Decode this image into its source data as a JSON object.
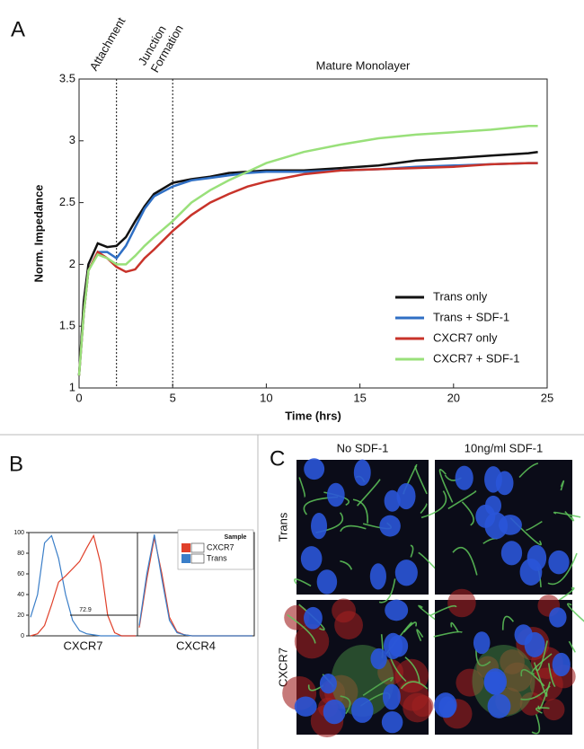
{
  "panel_labels": [
    "A",
    "B",
    "C"
  ],
  "chart_data": [
    {
      "type": "line",
      "annotations": [
        "Attachment",
        "Junction",
        "Formation",
        "Mature Monolayer"
      ],
      "vlines": [
        2,
        5
      ],
      "xlabel": "Time (hrs)",
      "ylabel": "Norm. Impedance",
      "x": [
        0,
        0.25,
        0.5,
        1,
        1.5,
        2,
        2.5,
        3,
        3.5,
        4,
        5,
        6,
        7,
        8,
        9,
        10,
        12,
        14,
        16,
        18,
        20,
        22,
        24,
        24.5
      ],
      "series": [
        {
          "name": "Trans only",
          "color": "#111111",
          "values": [
            1.1,
            1.7,
            2.0,
            2.17,
            2.14,
            2.15,
            2.22,
            2.35,
            2.47,
            2.57,
            2.66,
            2.69,
            2.71,
            2.74,
            2.75,
            2.76,
            2.76,
            2.78,
            2.8,
            2.84,
            2.86,
            2.88,
            2.9,
            2.91
          ]
        },
        {
          "name": "Trans + SDF-1",
          "color": "#2f6fc4",
          "values": [
            1.1,
            1.6,
            1.95,
            2.1,
            2.1,
            2.05,
            2.15,
            2.3,
            2.45,
            2.55,
            2.63,
            2.68,
            2.7,
            2.72,
            2.74,
            2.75,
            2.75,
            2.76,
            2.77,
            2.79,
            2.8,
            2.81,
            2.82,
            2.82
          ]
        },
        {
          "name": "CXCR7 only",
          "color": "#c8332a",
          "values": [
            1.1,
            1.6,
            1.95,
            2.1,
            2.05,
            1.98,
            1.94,
            1.96,
            2.05,
            2.12,
            2.27,
            2.4,
            2.5,
            2.57,
            2.63,
            2.67,
            2.73,
            2.76,
            2.77,
            2.78,
            2.79,
            2.81,
            2.82,
            2.82
          ]
        },
        {
          "name": "CXCR7 + SDF-1",
          "color": "#99e07a",
          "values": [
            1.1,
            1.6,
            1.95,
            2.08,
            2.05,
            2.0,
            2.0,
            2.07,
            2.15,
            2.22,
            2.35,
            2.5,
            2.6,
            2.68,
            2.75,
            2.82,
            2.91,
            2.97,
            3.02,
            3.05,
            3.07,
            3.09,
            3.12,
            3.12
          ]
        }
      ],
      "xlim": [
        0,
        25
      ],
      "xticks": [
        0,
        5,
        10,
        15,
        20,
        25
      ],
      "ylim": [
        1,
        3.5
      ],
      "yticks": [
        1,
        1.5,
        2,
        2.5,
        3,
        3.5
      ],
      "legend": "lower right"
    },
    {
      "type": "line",
      "xlabel": "CXCR7",
      "categories": [
        null,
        null,
        null,
        null,
        null,
        null,
        null,
        null,
        null,
        null,
        null,
        null,
        null,
        null,
        null,
        null
      ],
      "series": [
        {
          "name": "Trans",
          "color": "#3a7ec8",
          "values": [
            18,
            40,
            90,
            97,
            75,
            40,
            15,
            5,
            2,
            1,
            0,
            0,
            0,
            0,
            0,
            0
          ]
        },
        {
          "name": "CXCR7",
          "color": "#e0402a",
          "values": [
            0,
            2,
            10,
            30,
            52,
            58,
            65,
            72,
            85,
            97,
            70,
            20,
            3,
            0,
            0,
            0
          ]
        }
      ],
      "gate": {
        "label": "72.9",
        "y": 20
      },
      "ylim": [
        0,
        100
      ],
      "yticks": [
        0,
        20,
        40,
        60,
        80,
        100
      ]
    },
    {
      "type": "line",
      "xlabel": "CXCR4",
      "categories": [
        null,
        null,
        null,
        null,
        null,
        null,
        null,
        null,
        null,
        null,
        null,
        null,
        null,
        null,
        null,
        null
      ],
      "series": [
        {
          "name": "CXCR7",
          "color": "#e0402a",
          "values": [
            8,
            55,
            95,
            60,
            18,
            4,
            1,
            0,
            0,
            0,
            0,
            0,
            0,
            0,
            0,
            0
          ]
        },
        {
          "name": "Trans",
          "color": "#3a7ec8",
          "values": [
            10,
            60,
            98,
            55,
            15,
            3,
            1,
            0,
            0,
            0,
            0,
            0,
            0,
            0,
            0,
            0
          ]
        }
      ],
      "ylim": [
        0,
        100
      ],
      "legend_title": "Sample",
      "legend": "upper right"
    }
  ],
  "panel_c": {
    "columns": [
      "No SDF-1",
      "10ng/ml SDF-1"
    ],
    "rows": [
      "Trans",
      "CXCR7"
    ]
  }
}
